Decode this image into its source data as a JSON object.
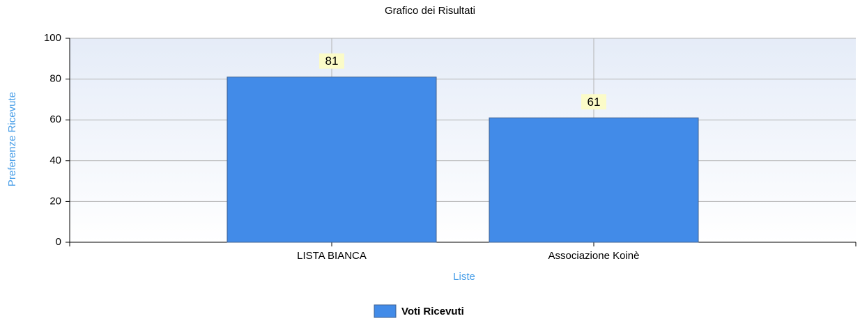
{
  "chart_data": {
    "type": "bar",
    "title": "Grafico dei Risultati",
    "x_label": "Liste",
    "y_label": "Preferenze Ricevute",
    "categories": [
      "LISTA BIANCA",
      "Associazione Koinè"
    ],
    "series": [
      {
        "name": "Voti Ricevuti",
        "color": "#428be8",
        "values": [
          81,
          61
        ]
      }
    ],
    "ylim": [
      0,
      100
    ],
    "yticks": [
      0,
      20,
      40,
      60,
      80,
      100
    ],
    "grid": true,
    "legend": "bottom"
  }
}
